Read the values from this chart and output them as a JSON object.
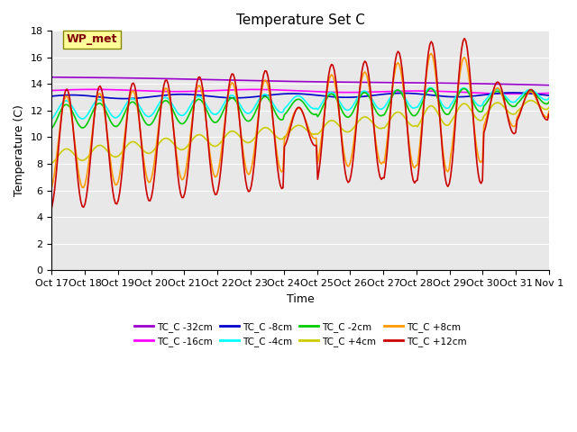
{
  "title": "Temperature Set C",
  "ylabel": "Temperature (C)",
  "xlabel": "Time",
  "ylim": [
    0,
    18
  ],
  "yticks": [
    0,
    2,
    4,
    6,
    8,
    10,
    12,
    14,
    16,
    18
  ],
  "plot_bg_color": "#e8e8e8",
  "series": [
    {
      "label": "TC_C -32cm",
      "color": "#9900cc"
    },
    {
      "label": "TC_C -16cm",
      "color": "#ff00ff"
    },
    {
      "label": "TC_C -8cm",
      "color": "#0000cc"
    },
    {
      "label": "TC_C -4cm",
      "color": "#00ffff"
    },
    {
      "label": "TC_C -2cm",
      "color": "#00cc00"
    },
    {
      "label": "TC_C +4cm",
      "color": "#cccc00"
    },
    {
      "label": "TC_C +8cm",
      "color": "#ff9900"
    },
    {
      "label": "TC_C +12cm",
      "color": "#cc0000"
    }
  ],
  "xtick_labels": [
    "Oct 17",
    "Oct 18",
    "Oct 19",
    "Oct 20",
    "Oct 21",
    "Oct 22",
    "Oct 23",
    "Oct 24",
    "Oct 25",
    "Oct 26",
    "Oct 27",
    "Oct 28",
    "Oct 29",
    "Oct 30",
    "Oct 31",
    "Nov 1"
  ],
  "wp_met_box_color": "#ffff99",
  "wp_met_text_color": "#800000"
}
